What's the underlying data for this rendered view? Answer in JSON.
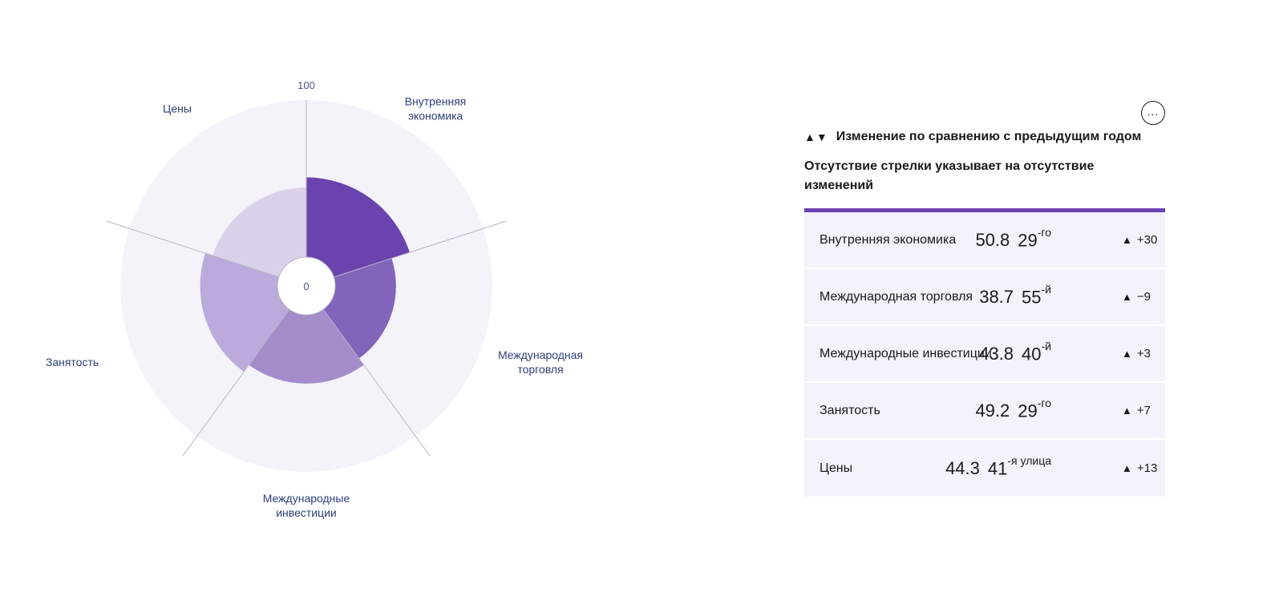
{
  "chart_data": {
    "type": "polar-area",
    "center_label": "0",
    "max_label": "100",
    "max": 100,
    "categories": [
      {
        "name": "Внутренняя экономика",
        "label_lines": [
          "Внутренняя",
          "экономика"
        ],
        "value": 50.8,
        "color": "#6a43ae"
      },
      {
        "name": "Международная торговля",
        "label_lines": [
          "Международная",
          "торговля"
        ],
        "value": 38.7,
        "color": "#8264bb"
      },
      {
        "name": "Международные инвестиции",
        "label_lines": [
          "Международные",
          "инвестиции"
        ],
        "value": 43.8,
        "color": "#a48ccb"
      },
      {
        "name": "Занятость",
        "label_lines": [
          "Занятость"
        ],
        "value": 49.2,
        "color": "#bbaadb"
      },
      {
        "name": "Цены",
        "label_lines": [
          "Цены"
        ],
        "value": 44.3,
        "color": "#d9d1e9"
      }
    ],
    "background_color": "#f5f3fa"
  },
  "panel": {
    "menu_label": "...",
    "legend_arrows": "▲▼",
    "legend_text": "Изменение по сравнению с предыдущим годом",
    "note": "Отсутствие стрелки указывает на отсутствие изменений",
    "accent_color": "#6a42b3",
    "rows": [
      {
        "label": "Внутренняя экономика",
        "score": "50.8",
        "rank": "29",
        "rank_suffix": "-го",
        "arrow": "▲",
        "change": "+30"
      },
      {
        "label": "Международная торговля",
        "score": "38.7",
        "rank": "55",
        "rank_suffix": "-й",
        "arrow": "▲",
        "change": "−9"
      },
      {
        "label": "Международные инвестиции",
        "score": "43.8",
        "rank": "40",
        "rank_suffix": "-й",
        "arrow": "▲",
        "change": "+3"
      },
      {
        "label": "Занятость",
        "score": "49.2",
        "rank": "29",
        "rank_suffix": "-го",
        "arrow": "▲",
        "change": "+7"
      },
      {
        "label": "Цены",
        "score": "44.3",
        "rank": "41",
        "rank_suffix": "-я улица",
        "arrow": "▲",
        "change": "+13"
      }
    ]
  }
}
